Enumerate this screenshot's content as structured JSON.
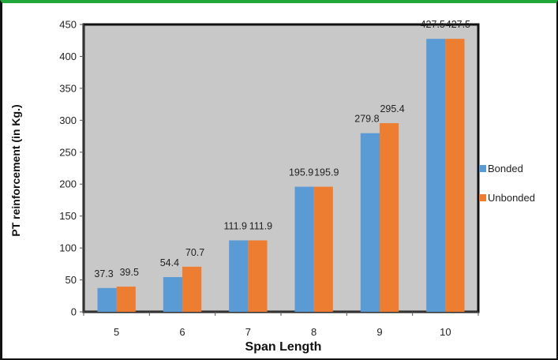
{
  "chart_data": {
    "type": "bar",
    "title": "",
    "xlabel": "Span Length",
    "ylabel": "PT reinforcement  (in Kg.)",
    "categories": [
      "5",
      "6",
      "7",
      "8",
      "9",
      "10"
    ],
    "series": [
      {
        "name": "Bonded",
        "color": "#5b9bd5",
        "values": [
          37.3,
          54.4,
          111.9,
          195.9,
          279.8,
          427.5
        ],
        "labels": [
          "37.3",
          "54.4",
          "111.9",
          "195.9",
          "279.8",
          "427.5"
        ]
      },
      {
        "name": "Unbonded",
        "color": "#ed7d31",
        "values": [
          39.5,
          70.7,
          111.9,
          195.9,
          295.4,
          427.5
        ],
        "labels": [
          "39.5",
          "70.7",
          "111.9",
          "195.9",
          "295.4",
          "427.5"
        ]
      }
    ],
    "ylim": [
      0,
      450
    ],
    "yticks": [
      "0",
      "50",
      "100",
      "150",
      "200",
      "250",
      "300",
      "350",
      "400",
      "450"
    ],
    "grid": false,
    "legend": "right",
    "plot_background": "#c8c8c8"
  }
}
